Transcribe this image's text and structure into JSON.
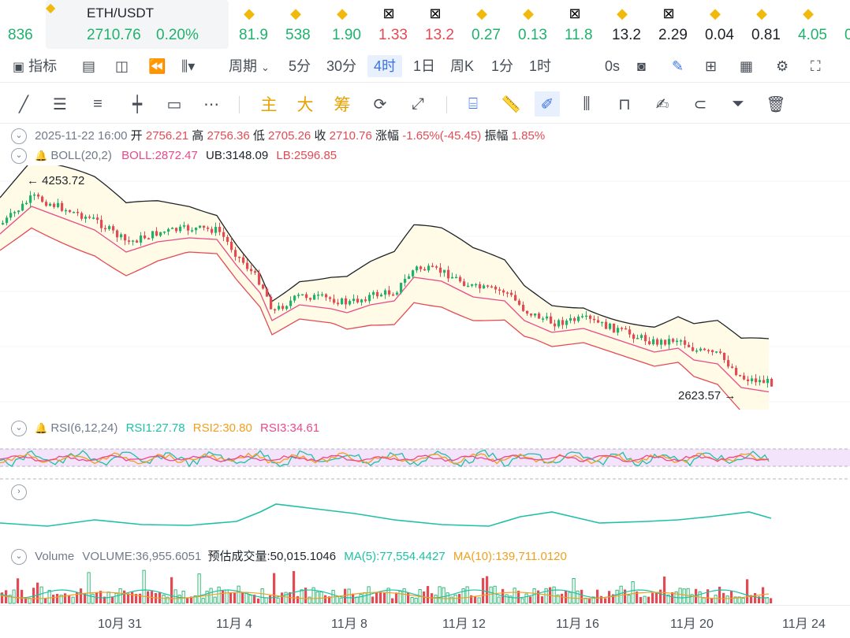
{
  "ticker": {
    "main": {
      "symbol": "ETH/USDT",
      "price": "2710.76",
      "change": "0.20%"
    },
    "items": [
      {
        "value": "836",
        "icon": "bnb-icon",
        "color": "#20b26c"
      },
      {
        "value": "81.9",
        "icon": "bnb-icon",
        "color": "#20b26c"
      },
      {
        "value": "538",
        "icon": "bnb-icon",
        "color": "#20b26c"
      },
      {
        "value": "1.90",
        "icon": "bnb-icon",
        "color": "#20b26c"
      },
      {
        "value": "1.33",
        "icon": "okx-icon",
        "color": "#e44a54"
      },
      {
        "value": "13.2",
        "icon": "okx-icon",
        "color": "#e44a54"
      },
      {
        "value": "0.27",
        "icon": "bnb-icon",
        "color": "#20b26c"
      },
      {
        "value": "0.13",
        "icon": "bnb-icon",
        "color": "#20b26c"
      },
      {
        "value": "11.8",
        "icon": "okx-icon",
        "color": "#20b26c"
      },
      {
        "value": "13.2",
        "icon": "bnb-icon",
        "color": "#1e2329"
      },
      {
        "value": "2.29",
        "icon": "okx-icon",
        "color": "#1e2329"
      },
      {
        "value": "0.04",
        "icon": "bnb-icon",
        "color": "#1e2329"
      },
      {
        "value": "0.81",
        "icon": "bnb-icon",
        "color": "#1e2329"
      },
      {
        "value": "4.05",
        "icon": "bnb-icon",
        "color": "#20b26c"
      },
      {
        "value": "0",
        "icon": "",
        "color": "#20b26c"
      }
    ]
  },
  "toolbar": {
    "indicators": "指标",
    "period": "周期",
    "intervals": [
      "5分",
      "30分",
      "4时",
      "1日",
      "周K",
      "1分",
      "1时"
    ],
    "active_interval": "4时",
    "countdown": "0s"
  },
  "drawing_tools": {
    "zhu": "主",
    "da": "大",
    "chou": "筹"
  },
  "ohlc": {
    "date": "2025-11-22 16:00",
    "open_label": "开",
    "open": "2756.21",
    "high_label": "高",
    "high": "2756.36",
    "low_label": "低",
    "low": "2705.26",
    "close_label": "收",
    "close": "2710.76",
    "change_label": "涨幅",
    "change": "-1.65%(-45.45)",
    "amp_label": "振幅",
    "amp": "1.85%"
  },
  "boll": {
    "name": "BOLL(20,2)",
    "boll": "BOLL:2872.47",
    "ub": "UB:3148.09",
    "lb": "LB:2596.85"
  },
  "price_annotations": {
    "high": "4253.72",
    "low": "2623.57"
  },
  "rsi": {
    "name": "RSI(6,12,24)",
    "rsi1": "RSI1:27.78",
    "rsi2": "RSI2:30.80",
    "rsi3": "RSI3:34.61"
  },
  "volume": {
    "name": "Volume",
    "volume": "VOLUME:36,955.6051",
    "estimate": "预估成交量:50,015.1046",
    "ma5": "MA(5):77,554.4427",
    "ma10": "MA(10):139,711.0120"
  },
  "x_axis": [
    "10月 31",
    "11月 4",
    "11月 8",
    "11月 12",
    "11月 16",
    "11月 20",
    "11月 24"
  ],
  "colors": {
    "up": "#20b26c",
    "down": "#e44a54",
    "accent": "#3b73e8",
    "boll_mid": "#e84a8a",
    "ub": "#1e2329",
    "lb": "#e44a54"
  }
}
